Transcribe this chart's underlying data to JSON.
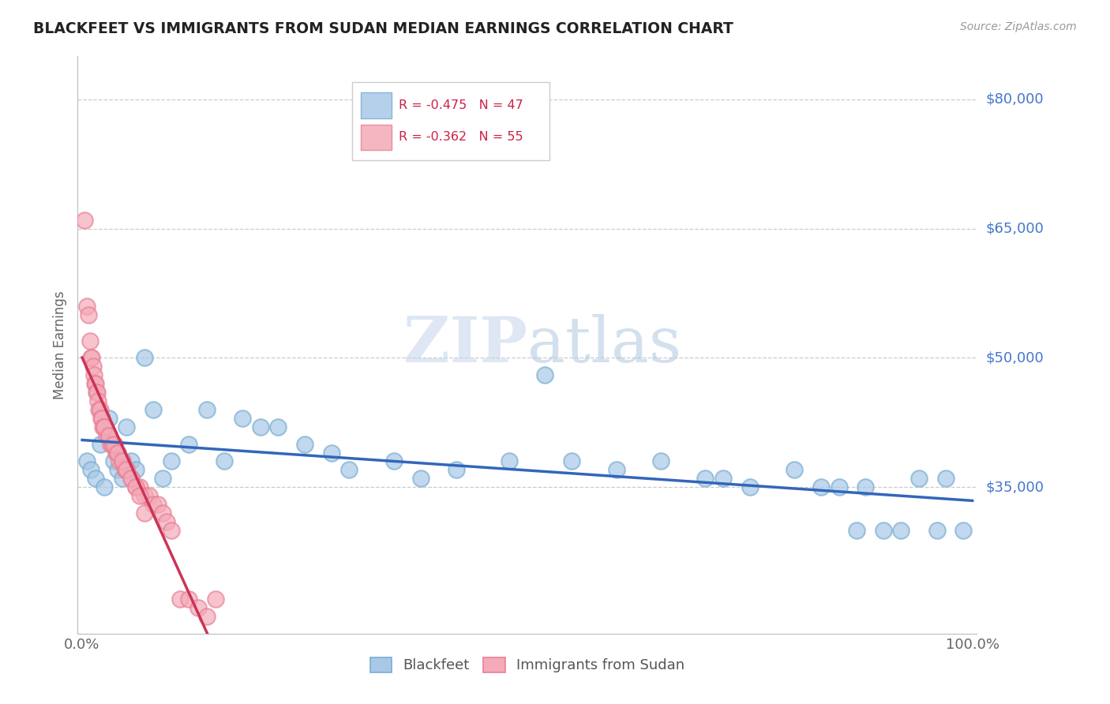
{
  "title": "BLACKFEET VS IMMIGRANTS FROM SUDAN MEDIAN EARNINGS CORRELATION CHART",
  "source": "Source: ZipAtlas.com",
  "ylabel": "Median Earnings",
  "legend_r_blue": "R = -0.475",
  "legend_n_blue": "N = 47",
  "legend_r_pink": "R = -0.362",
  "legend_n_pink": "N = 55",
  "blue_color": "#a8c8e8",
  "pink_color": "#f4aab8",
  "blue_edge_color": "#7aaed0",
  "pink_edge_color": "#e88098",
  "blue_line_color": "#3366bb",
  "pink_line_color": "#cc3355",
  "ytick_labels": [
    "$80,000",
    "$65,000",
    "$50,000",
    "$35,000"
  ],
  "ytick_values": [
    80000,
    65000,
    50000,
    35000
  ],
  "ymin": 18000,
  "ymax": 85000,
  "xmin": -0.005,
  "xmax": 1.005,
  "blue_x": [
    0.005,
    0.01,
    0.015,
    0.02,
    0.025,
    0.03,
    0.035,
    0.04,
    0.045,
    0.05,
    0.055,
    0.06,
    0.07,
    0.08,
    0.09,
    0.1,
    0.12,
    0.14,
    0.16,
    0.18,
    0.2,
    0.22,
    0.25,
    0.28,
    0.3,
    0.35,
    0.38,
    0.42,
    0.48,
    0.52,
    0.55,
    0.6,
    0.65,
    0.7,
    0.72,
    0.75,
    0.8,
    0.83,
    0.85,
    0.87,
    0.88,
    0.9,
    0.92,
    0.94,
    0.96,
    0.97,
    0.99
  ],
  "blue_y": [
    38000,
    37000,
    36000,
    40000,
    35000,
    43000,
    38000,
    37000,
    36000,
    42000,
    38000,
    37000,
    50000,
    44000,
    36000,
    38000,
    40000,
    44000,
    38000,
    43000,
    42000,
    42000,
    40000,
    39000,
    37000,
    38000,
    36000,
    37000,
    38000,
    48000,
    38000,
    37000,
    38000,
    36000,
    36000,
    35000,
    37000,
    35000,
    35000,
    30000,
    35000,
    30000,
    30000,
    36000,
    30000,
    36000,
    30000
  ],
  "pink_x": [
    0.003,
    0.005,
    0.007,
    0.009,
    0.01,
    0.011,
    0.012,
    0.013,
    0.014,
    0.015,
    0.016,
    0.017,
    0.018,
    0.019,
    0.02,
    0.021,
    0.022,
    0.023,
    0.025,
    0.027,
    0.03,
    0.032,
    0.034,
    0.036,
    0.038,
    0.04,
    0.042,
    0.045,
    0.048,
    0.05,
    0.055,
    0.06,
    0.065,
    0.07,
    0.075,
    0.08,
    0.085,
    0.09,
    0.095,
    0.1,
    0.11,
    0.12,
    0.13,
    0.14,
    0.15,
    0.025,
    0.03,
    0.035,
    0.04,
    0.045,
    0.05,
    0.055,
    0.06,
    0.065,
    0.07
  ],
  "pink_y": [
    66000,
    56000,
    55000,
    52000,
    50000,
    50000,
    49000,
    48000,
    47000,
    47000,
    46000,
    46000,
    45000,
    44000,
    44000,
    43000,
    43000,
    42000,
    42000,
    41000,
    41000,
    40000,
    40000,
    40000,
    39000,
    39000,
    38000,
    38000,
    37000,
    37000,
    36000,
    35000,
    35000,
    34000,
    34000,
    33000,
    33000,
    32000,
    31000,
    30000,
    22000,
    22000,
    21000,
    20000,
    22000,
    42000,
    41000,
    40000,
    39000,
    38000,
    37000,
    36000,
    35000,
    34000,
    32000
  ]
}
